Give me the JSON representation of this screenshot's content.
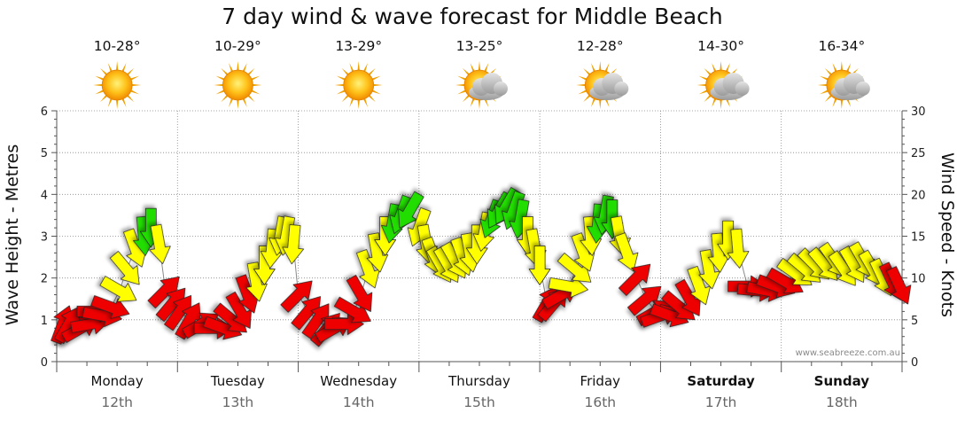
{
  "chart_data": {
    "type": "line",
    "title": "7 day wind & wave forecast for Middle Beach",
    "ylabel_left": "Wave Height - Metres",
    "ylabel_right": "Wind Speed - Knots",
    "ylim_left": [
      0,
      6
    ],
    "ylim_right": [
      0,
      30
    ],
    "yticks_left": [
      "0",
      "1",
      "2",
      "3",
      "4",
      "5",
      "6"
    ],
    "yticks_right": [
      "0",
      "5",
      "10",
      "15",
      "20",
      "25",
      "30"
    ],
    "days": [
      {
        "name": "Monday",
        "date": "12th",
        "temp": "10-28°",
        "weather": "sunny",
        "bold": false
      },
      {
        "name": "Tuesday",
        "date": "13th",
        "temp": "10-29°",
        "weather": "sunny",
        "bold": false
      },
      {
        "name": "Wednesday",
        "date": "14th",
        "temp": "13-29°",
        "weather": "sunny",
        "bold": false
      },
      {
        "name": "Thursday",
        "date": "15th",
        "temp": "13-25°",
        "weather": "partly-cloudy",
        "bold": false
      },
      {
        "name": "Friday",
        "date": "16th",
        "temp": "12-28°",
        "weather": "partly-cloudy",
        "bold": false
      },
      {
        "name": "Saturday",
        "date": "17th",
        "temp": "14-30°",
        "weather": "partly-cloudy",
        "bold": true
      },
      {
        "name": "Sunday",
        "date": "18th",
        "temp": "16-34°",
        "weather": "partly-cloudy",
        "bold": true
      }
    ],
    "series": [
      {
        "name": "Wind",
        "x_day": [
          0.05,
          0.1,
          0.2,
          0.28,
          0.33,
          0.38,
          0.45,
          0.52,
          0.58,
          0.65,
          0.72,
          0.78,
          0.85,
          0.9,
          0.96,
          1.02,
          1.1,
          1.2,
          1.3,
          1.38,
          1.45,
          1.52,
          1.58,
          1.65,
          1.72,
          1.78,
          1.85,
          1.9,
          1.96,
          2.0,
          2.08,
          2.16,
          2.24,
          2.3,
          2.38,
          2.46,
          2.52,
          2.58,
          2.65,
          2.72,
          2.78,
          2.85,
          2.92,
          3.0,
          3.06,
          3.12,
          3.18,
          3.24,
          3.3,
          3.36,
          3.42,
          3.48,
          3.54,
          3.6,
          3.66,
          3.72,
          3.78,
          3.84,
          3.9,
          3.96,
          4.0,
          4.06,
          4.12,
          4.18,
          4.24,
          4.3,
          4.36,
          4.42,
          4.48,
          4.54,
          4.6,
          4.66,
          4.72,
          4.8,
          4.88,
          4.96,
          5.0,
          5.08,
          5.16,
          5.24,
          5.32,
          5.4,
          5.48,
          5.56,
          5.64,
          5.72,
          5.8,
          5.88,
          5.96,
          6.04,
          6.12,
          6.2,
          6.28,
          6.36,
          6.44,
          6.52,
          6.6,
          6.68,
          6.76,
          6.84,
          6.92,
          6.98
        ],
        "wave_m": [
          0.9,
          0.9,
          0.8,
          0.9,
          1.2,
          1.1,
          1.3,
          1.7,
          2.2,
          2.7,
          3.0,
          3.2,
          2.8,
          1.7,
          1.4,
          1.2,
          1.0,
          0.9,
          0.8,
          0.8,
          1.0,
          1.2,
          1.6,
          1.9,
          2.3,
          2.7,
          3.0,
          3.0,
          2.8,
          1.6,
          1.2,
          1.0,
          0.8,
          0.8,
          0.9,
          1.2,
          1.6,
          2.2,
          2.6,
          3.0,
          3.3,
          3.5,
          3.6,
          3.2,
          2.8,
          2.5,
          2.3,
          2.3,
          2.4,
          2.5,
          2.6,
          2.8,
          3.1,
          3.4,
          3.6,
          3.7,
          3.6,
          3.4,
          3.0,
          2.7,
          2.3,
          1.4,
          1.4,
          1.6,
          1.8,
          2.2,
          2.6,
          3.0,
          3.3,
          3.5,
          3.4,
          3.0,
          2.6,
          2.0,
          1.5,
          1.2,
          1.1,
          1.1,
          1.3,
          1.5,
          1.8,
          2.2,
          2.6,
          2.9,
          2.7,
          1.8,
          1.7,
          1.7,
          1.8,
          1.9,
          2.1,
          2.2,
          2.3,
          2.3,
          2.4,
          2.2,
          2.3,
          2.4,
          2.2,
          2.0,
          1.9,
          1.8
        ],
        "wind_knots": [
          4,
          4,
          3,
          4,
          6,
          7,
          8,
          11,
          14,
          16,
          17,
          18,
          14,
          9,
          7,
          5,
          4,
          4,
          3,
          4,
          5,
          6,
          8,
          10,
          12,
          14,
          15,
          15,
          14,
          9,
          6,
          5,
          3,
          3,
          4,
          6,
          8,
          11,
          13,
          15,
          17,
          18,
          19,
          16,
          13,
          12,
          11,
          11,
          12,
          12,
          13,
          14,
          16,
          17,
          19,
          20,
          19,
          17,
          15,
          13,
          12,
          6,
          7,
          8,
          10,
          11,
          13,
          15,
          17,
          19,
          17,
          15,
          13,
          9,
          7,
          5,
          4,
          5,
          6,
          8,
          10,
          12,
          13,
          15,
          14,
          8,
          7,
          7,
          8,
          9,
          10,
          11,
          11,
          11,
          12,
          11,
          12,
          13,
          12,
          10,
          9,
          9
        ],
        "wind_dir_deg": [
          20,
          30,
          60,
          80,
          90,
          100,
          110,
          120,
          140,
          160,
          175,
          180,
          170,
          45,
          40,
          35,
          30,
          60,
          90,
          110,
          130,
          150,
          160,
          170,
          180,
          185,
          190,
          190,
          185,
          45,
          40,
          35,
          40,
          60,
          90,
          120,
          150,
          160,
          170,
          180,
          190,
          200,
          210,
          200,
          170,
          160,
          150,
          150,
          150,
          160,
          170,
          180,
          190,
          200,
          210,
          210,
          200,
          190,
          180,
          170,
          180,
          30,
          40,
          60,
          100,
          130,
          160,
          175,
          185,
          190,
          180,
          170,
          160,
          45,
          50,
          60,
          70,
          110,
          130,
          150,
          160,
          170,
          175,
          180,
          175,
          90,
          95,
          100,
          110,
          120,
          125,
          130,
          135,
          140,
          145,
          145,
          150,
          150,
          150,
          155,
          155,
          155
        ]
      }
    ],
    "color_scale": {
      "low": "#ee0000",
      "mid": "#ffff00",
      "high": "#22dd00",
      "thresholds_knots": [
        10,
        17
      ]
    },
    "credit": "www.seabreeze.com.au",
    "colors": {
      "grid": "#888888",
      "axis": "#555555",
      "arrow_stroke": "#222222"
    }
  }
}
